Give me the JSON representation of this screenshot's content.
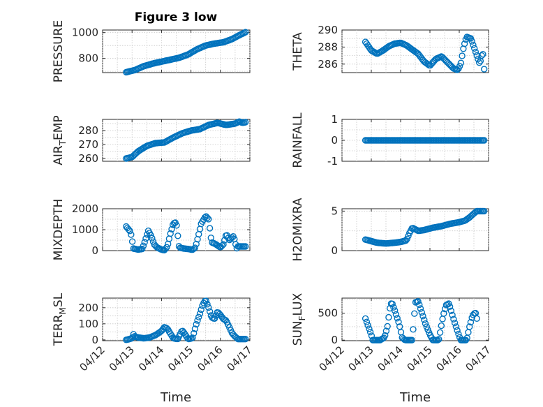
{
  "figure": {
    "title": "Figure 3 low",
    "xlabel": "Time",
    "date_ticks": [
      "04/12",
      "04/13",
      "04/14",
      "04/15",
      "04/16",
      "04/17"
    ],
    "marker_color": "#0072bd",
    "marker": "o"
  },
  "chart_data": [
    {
      "type": "scatter",
      "id": "pressure",
      "ylabel": "PRESSURE",
      "ylim": [
        690,
        1020
      ],
      "yticks": [
        800,
        1000
      ],
      "grid": true,
      "x_range": [
        0.8,
        4.85
      ],
      "anchors": [
        [
          0.8,
          693
        ],
        [
          1.1,
          710
        ],
        [
          1.4,
          740
        ],
        [
          1.7,
          760
        ],
        [
          2.0,
          775
        ],
        [
          2.3,
          790
        ],
        [
          2.6,
          805
        ],
        [
          2.9,
          830
        ],
        [
          3.2,
          870
        ],
        [
          3.5,
          900
        ],
        [
          3.8,
          915
        ],
        [
          4.1,
          925
        ],
        [
          4.4,
          950
        ],
        [
          4.6,
          975
        ],
        [
          4.85,
          1003
        ]
      ]
    },
    {
      "type": "scatter",
      "id": "theta",
      "ylabel": "THETA",
      "ylim": [
        285,
        290
      ],
      "yticks": [
        286,
        288,
        290
      ],
      "grid": true,
      "x_range": [
        0.8,
        4.85
      ],
      "anchors": [
        [
          0.8,
          288.6
        ],
        [
          1.0,
          287.6
        ],
        [
          1.2,
          287.2
        ],
        [
          1.4,
          287.6
        ],
        [
          1.6,
          288.1
        ],
        [
          1.8,
          288.4
        ],
        [
          2.0,
          288.5
        ],
        [
          2.2,
          288.2
        ],
        [
          2.4,
          287.7
        ],
        [
          2.6,
          287.2
        ],
        [
          2.8,
          286.3
        ],
        [
          3.0,
          285.8
        ],
        [
          3.1,
          286.2
        ],
        [
          3.2,
          286.6
        ],
        [
          3.4,
          286.9
        ],
        [
          3.6,
          286.2
        ],
        [
          3.8,
          285.5
        ],
        [
          3.95,
          285.3
        ],
        [
          4.05,
          286.0
        ],
        [
          4.15,
          288.0
        ],
        [
          4.25,
          289.2
        ],
        [
          4.4,
          289.0
        ],
        [
          4.5,
          288.0
        ],
        [
          4.6,
          287.0
        ],
        [
          4.7,
          286.0
        ],
        [
          4.8,
          287.5
        ],
        [
          4.85,
          285.4
        ]
      ]
    },
    {
      "type": "scatter",
      "id": "air_temp",
      "ylabel": "AIR_TEMP",
      "ylim": [
        258,
        288
      ],
      "yticks": [
        260,
        270,
        280
      ],
      "grid": true,
      "x_range": [
        0.8,
        4.85
      ],
      "anchors": [
        [
          0.8,
          260
        ],
        [
          1.0,
          261
        ],
        [
          1.2,
          265
        ],
        [
          1.5,
          269
        ],
        [
          1.8,
          271
        ],
        [
          2.1,
          271.5
        ],
        [
          2.4,
          275
        ],
        [
          2.7,
          278
        ],
        [
          3.0,
          280
        ],
        [
          3.3,
          281
        ],
        [
          3.6,
          284
        ],
        [
          3.9,
          285.5
        ],
        [
          4.2,
          284
        ],
        [
          4.5,
          285
        ],
        [
          4.65,
          286.5
        ],
        [
          4.75,
          285.5
        ],
        [
          4.85,
          286
        ]
      ]
    },
    {
      "type": "scatter",
      "id": "rainfall",
      "ylabel": "RAINFALL",
      "ylim": [
        -1,
        1
      ],
      "yticks": [
        -1,
        0,
        1
      ],
      "grid": true,
      "x_range": [
        0.8,
        4.85
      ],
      "anchors": [
        [
          0.8,
          0
        ],
        [
          4.85,
          0
        ]
      ]
    },
    {
      "type": "scatter",
      "id": "mixdepth",
      "ylabel": "MIXDEPTH",
      "ylim": [
        0,
        2000
      ],
      "yticks": [
        0,
        1000,
        2000
      ],
      "grid": true,
      "x_range": [
        0.8,
        4.85
      ],
      "anchors": [
        [
          0.8,
          1150
        ],
        [
          0.95,
          900
        ],
        [
          1.05,
          100
        ],
        [
          1.2,
          50
        ],
        [
          1.35,
          80
        ],
        [
          1.45,
          500
        ],
        [
          1.55,
          950
        ],
        [
          1.65,
          700
        ],
        [
          1.75,
          300
        ],
        [
          1.85,
          150
        ],
        [
          2.0,
          50
        ],
        [
          2.1,
          20
        ],
        [
          2.2,
          200
        ],
        [
          2.3,
          800
        ],
        [
          2.4,
          1300
        ],
        [
          2.5,
          1350
        ],
        [
          2.6,
          150
        ],
        [
          2.75,
          100
        ],
        [
          2.9,
          80
        ],
        [
          3.05,
          40
        ],
        [
          3.15,
          150
        ],
        [
          3.25,
          700
        ],
        [
          3.35,
          1300
        ],
        [
          3.5,
          1650
        ],
        [
          3.6,
          1500
        ],
        [
          3.7,
          400
        ],
        [
          3.85,
          300
        ],
        [
          4.0,
          150
        ],
        [
          4.1,
          300
        ],
        [
          4.2,
          800
        ],
        [
          4.3,
          500
        ],
        [
          4.45,
          700
        ],
        [
          4.55,
          100
        ],
        [
          4.6,
          200
        ]
      ]
    },
    {
      "type": "scatter",
      "id": "h2omixra",
      "ylabel": "H2OMIXRA",
      "ylim": [
        0,
        5.3
      ],
      "yticks": [
        0,
        5
      ],
      "grid": true,
      "x_range": [
        0.8,
        4.85
      ],
      "anchors": [
        [
          0.8,
          1.4
        ],
        [
          1.0,
          1.2
        ],
        [
          1.2,
          1.0
        ],
        [
          1.5,
          0.9
        ],
        [
          1.8,
          1.0
        ],
        [
          2.0,
          1.1
        ],
        [
          2.2,
          1.3
        ],
        [
          2.3,
          2.2
        ],
        [
          2.4,
          2.9
        ],
        [
          2.6,
          2.5
        ],
        [
          2.8,
          2.6
        ],
        [
          3.1,
          2.9
        ],
        [
          3.4,
          3.1
        ],
        [
          3.7,
          3.4
        ],
        [
          4.0,
          3.6
        ],
        [
          4.2,
          3.8
        ],
        [
          4.35,
          4.2
        ],
        [
          4.5,
          4.7
        ],
        [
          4.6,
          5.0
        ]
      ]
    },
    {
      "type": "scatter",
      "id": "terr_msl",
      "ylabel": "TERR_MSL",
      "ylim": [
        -5,
        260
      ],
      "yticks": [
        0,
        100,
        200
      ],
      "grid": true,
      "x_range": [
        0.8,
        4.85
      ],
      "anchors": [
        [
          0.8,
          0
        ],
        [
          0.9,
          5
        ],
        [
          1.0,
          10
        ],
        [
          1.05,
          35
        ],
        [
          1.1,
          20
        ],
        [
          1.2,
          15
        ],
        [
          1.4,
          10
        ],
        [
          1.6,
          15
        ],
        [
          1.8,
          30
        ],
        [
          2.0,
          55
        ],
        [
          2.1,
          80
        ],
        [
          2.2,
          70
        ],
        [
          2.3,
          40
        ],
        [
          2.4,
          10
        ],
        [
          2.55,
          5
        ],
        [
          2.7,
          60
        ],
        [
          2.8,
          35
        ],
        [
          2.9,
          5
        ],
        [
          3.05,
          10
        ],
        [
          3.2,
          110
        ],
        [
          3.3,
          160
        ],
        [
          3.4,
          220
        ],
        [
          3.5,
          250
        ],
        [
          3.6,
          200
        ],
        [
          3.7,
          140
        ],
        [
          3.8,
          130
        ],
        [
          3.9,
          175
        ],
        [
          4.0,
          155
        ],
        [
          4.1,
          130
        ],
        [
          4.2,
          120
        ],
        [
          4.3,
          80
        ],
        [
          4.4,
          40
        ],
        [
          4.5,
          20
        ],
        [
          4.6,
          5
        ]
      ]
    },
    {
      "type": "scatter",
      "id": "sun_flux",
      "ylabel": "SUN_FLUX",
      "ylim": [
        -10,
        780
      ],
      "yticks": [
        0,
        500
      ],
      "grid": true,
      "x_range": [
        0.8,
        4.6
      ],
      "anchors": [
        [
          0.8,
          400
        ],
        [
          0.9,
          250
        ],
        [
          1.0,
          100
        ],
        [
          1.05,
          0
        ],
        [
          1.3,
          0
        ],
        [
          1.45,
          50
        ],
        [
          1.55,
          250
        ],
        [
          1.65,
          650
        ],
        [
          1.7,
          700
        ],
        [
          1.8,
          550
        ],
        [
          1.95,
          300
        ],
        [
          2.05,
          50
        ],
        [
          2.15,
          0
        ],
        [
          2.4,
          0
        ],
        [
          2.5,
          700
        ],
        [
          2.6,
          720
        ],
        [
          2.7,
          550
        ],
        [
          2.85,
          300
        ],
        [
          3.0,
          100
        ],
        [
          3.1,
          0
        ],
        [
          3.3,
          0
        ],
        [
          3.45,
          450
        ],
        [
          3.55,
          650
        ],
        [
          3.65,
          680
        ],
        [
          3.8,
          400
        ],
        [
          3.95,
          150
        ],
        [
          4.05,
          0
        ],
        [
          4.25,
          0
        ],
        [
          4.35,
          250
        ],
        [
          4.45,
          450
        ],
        [
          4.55,
          520
        ],
        [
          4.6,
          400
        ]
      ]
    }
  ]
}
